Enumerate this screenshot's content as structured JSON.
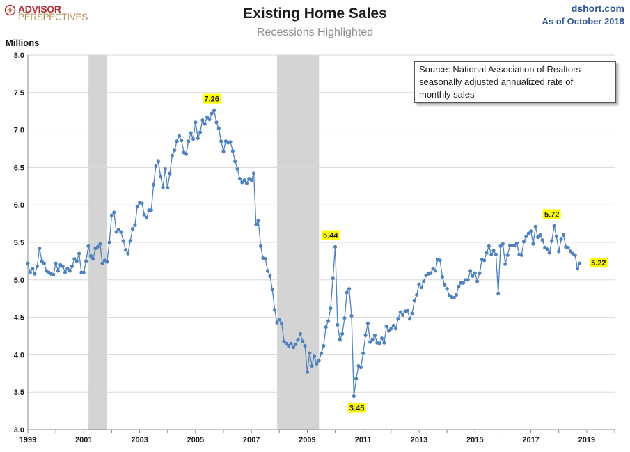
{
  "header": {
    "logo_line1": "ADVISOR",
    "logo_line2": "PERSPECTIVES",
    "site": "dshort.com",
    "as_of": "As of October 2018"
  },
  "note": "Source: National Association of Realtors\nseasonally adjusted annualized rate of\nmonthly sales",
  "colors": {
    "line": "#4f81bd",
    "recession": "#d4d4d4",
    "grid": "#d9d9d9",
    "callout": "#ffff00",
    "brand_red": "#b5272d",
    "brand_tan": "#b98d54"
  },
  "chart_data": {
    "type": "line",
    "title": "Existing Home Sales",
    "subtitle": "Recessions Highlighted",
    "ylabel": "Millions",
    "ylim": [
      3.0,
      8.0
    ],
    "yticks": [
      "3.0",
      "3.5",
      "4.0",
      "4.5",
      "5.0",
      "5.5",
      "6.0",
      "6.5",
      "7.0",
      "7.5",
      "8.0"
    ],
    "xlim": [
      1999.0,
      2020.0
    ],
    "xticks": [
      "1999",
      "2001",
      "2003",
      "2005",
      "2007",
      "2009",
      "2011",
      "2013",
      "2015",
      "2017",
      "2019"
    ],
    "grid": true,
    "recessions": [
      [
        2001.17,
        2001.83
      ],
      [
        2007.92,
        2009.42
      ]
    ],
    "series": [
      {
        "start": 1999.0,
        "step_months": 1,
        "values": [
          5.22,
          5.1,
          5.15,
          5.08,
          5.18,
          5.42,
          5.25,
          5.22,
          5.12,
          5.1,
          5.08,
          5.07,
          5.22,
          5.12,
          5.2,
          5.18,
          5.1,
          5.15,
          5.12,
          5.18,
          5.28,
          5.25,
          5.35,
          5.1,
          5.1,
          5.25,
          5.45,
          5.32,
          5.28,
          5.42,
          5.44,
          5.48,
          5.22,
          5.26,
          5.24,
          5.5,
          5.86,
          5.9,
          5.64,
          5.67,
          5.64,
          5.52,
          5.4,
          5.35,
          5.52,
          5.68,
          5.73,
          5.98,
          6.03,
          6.02,
          5.87,
          5.83,
          5.93,
          5.93,
          6.27,
          6.52,
          6.58,
          6.38,
          6.23,
          6.48,
          6.23,
          6.42,
          6.66,
          6.73,
          6.85,
          6.92,
          6.86,
          6.7,
          6.68,
          6.85,
          6.96,
          6.88,
          7.1,
          6.89,
          6.97,
          7.13,
          7.08,
          7.17,
          7.14,
          7.22,
          7.26,
          7.1,
          7.02,
          6.85,
          6.71,
          6.85,
          6.83,
          6.84,
          6.72,
          6.58,
          6.48,
          6.35,
          6.3,
          6.33,
          6.29,
          6.35,
          6.33,
          6.42,
          5.74,
          5.79,
          5.45,
          5.29,
          5.28,
          5.12,
          5.05,
          4.87,
          4.6,
          4.43,
          4.47,
          4.42,
          4.18,
          4.15,
          4.12,
          4.15,
          4.1,
          4.14,
          4.2,
          4.28,
          4.18,
          4.12,
          3.77,
          4.02,
          3.85,
          3.98,
          3.88,
          3.92,
          4.02,
          4.12,
          4.37,
          4.45,
          4.62,
          5.02,
          5.44,
          4.4,
          4.2,
          4.28,
          4.49,
          4.83,
          4.88,
          4.52,
          3.45,
          3.68,
          3.85,
          3.83,
          4.02,
          4.26,
          4.42,
          4.17,
          4.2,
          4.26,
          4.16,
          4.15,
          4.22,
          4.16,
          4.38,
          4.32,
          4.35,
          4.39,
          4.35,
          4.48,
          4.57,
          4.53,
          4.58,
          4.59,
          4.48,
          4.55,
          4.72,
          4.8,
          4.94,
          4.9,
          4.98,
          5.06,
          5.08,
          5.09,
          5.15,
          5.12,
          5.27,
          5.26,
          5.04,
          4.93,
          4.88,
          4.79,
          4.77,
          4.76,
          4.8,
          4.91,
          4.96,
          4.96,
          5.0,
          5.0,
          5.12,
          5.05,
          5.09,
          4.98,
          5.09,
          5.27,
          5.26,
          5.36,
          5.45,
          5.34,
          5.39,
          5.34,
          4.82,
          5.45,
          5.48,
          5.21,
          5.33,
          5.46,
          5.46,
          5.46,
          5.49,
          5.34,
          5.33,
          5.51,
          5.58,
          5.62,
          5.65,
          5.48,
          5.71,
          5.57,
          5.6,
          5.53,
          5.43,
          5.41,
          5.36,
          5.52,
          5.72,
          5.58,
          5.38,
          5.54,
          5.6,
          5.44,
          5.43,
          5.38,
          5.35,
          5.33,
          5.15,
          5.22
        ]
      }
    ],
    "annotations": [
      {
        "label": "7.26",
        "x": 2005.58,
        "y": 7.26,
        "position": "above"
      },
      {
        "label": "5.44",
        "x": 2009.83,
        "y": 5.44,
        "position": "above"
      },
      {
        "label": "3.45",
        "x": 2010.5,
        "y": 3.45,
        "position": "below"
      },
      {
        "label": "5.72",
        "x": 2017.75,
        "y": 5.72,
        "position": "above"
      },
      {
        "label": "5.22",
        "x": 2018.75,
        "y": 5.22,
        "position": "right"
      }
    ]
  }
}
